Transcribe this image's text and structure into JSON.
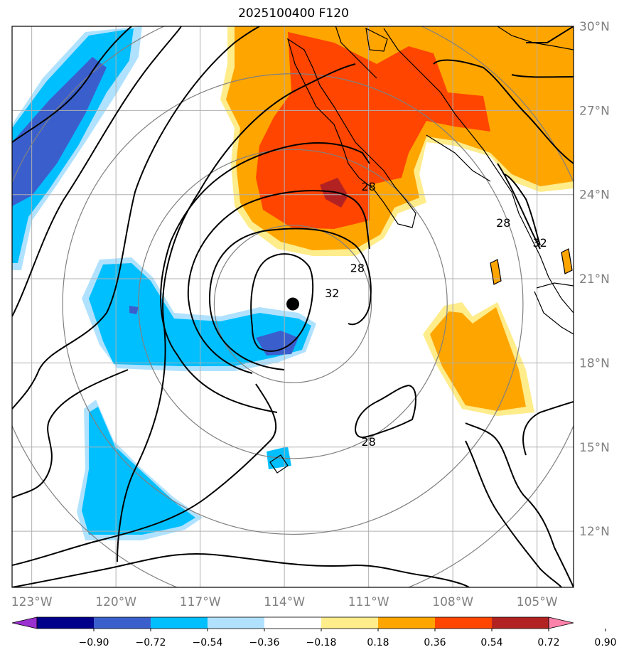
{
  "title": "2025100400 F120",
  "map": {
    "lon_range": [
      -123.7,
      -103.7
    ],
    "lat_range": [
      10.0,
      30.0
    ],
    "lon_ticks": [
      {
        "value": -123,
        "label": "123°W"
      },
      {
        "value": -120,
        "label": "120°W"
      },
      {
        "value": -117,
        "label": "117°W"
      },
      {
        "value": -114,
        "label": "114°W"
      },
      {
        "value": -111,
        "label": "111°W"
      },
      {
        "value": -108,
        "label": "108°W"
      },
      {
        "value": -105,
        "label": "105°W"
      }
    ],
    "lat_ticks": [
      {
        "value": 30,
        "label": "30°N"
      },
      {
        "value": 27,
        "label": "27°N"
      },
      {
        "value": 24,
        "label": "24°N"
      },
      {
        "value": 21,
        "label": "21°N"
      },
      {
        "value": 18,
        "label": "18°N"
      },
      {
        "value": 15,
        "label": "15°N"
      },
      {
        "value": 12,
        "label": "12°N"
      }
    ],
    "storm_center": {
      "lon": -113.7,
      "lat": 20.1
    },
    "range_rings_deg": [
      2.8,
      5.5,
      8.2,
      10.9
    ],
    "contour_labels": [
      {
        "text": "28",
        "lon": -111.0,
        "lat": 24.3
      },
      {
        "text": "28",
        "lon": -111.4,
        "lat": 21.4
      },
      {
        "text": "32",
        "lon": -112.3,
        "lat": 20.5
      },
      {
        "text": "28",
        "lon": -111.0,
        "lat": 15.2
      },
      {
        "text": "28",
        "lon": -106.2,
        "lat": 23.0
      },
      {
        "text": "32",
        "lon": -104.9,
        "lat": 22.3
      }
    ],
    "colors": {
      "frame": "#000000",
      "grid": "#b0b0b0",
      "ring": "#808080",
      "contour": "#000000",
      "coast": "#000000"
    }
  },
  "colorbar": {
    "labels": [
      "−0.90",
      "−0.72",
      "−0.54",
      "−0.36",
      "−0.18",
      "0.18",
      "0.36",
      "0.54",
      "0.72",
      "0.90"
    ],
    "colors": [
      "#9b30d0",
      "#00008b",
      "#3a5fcd",
      "#00bfff",
      "#b0e2ff",
      "#ffffff",
      "#ffec8b",
      "#ffa500",
      "#ff4500",
      "#b22222",
      "#ff82ab"
    ]
  }
}
